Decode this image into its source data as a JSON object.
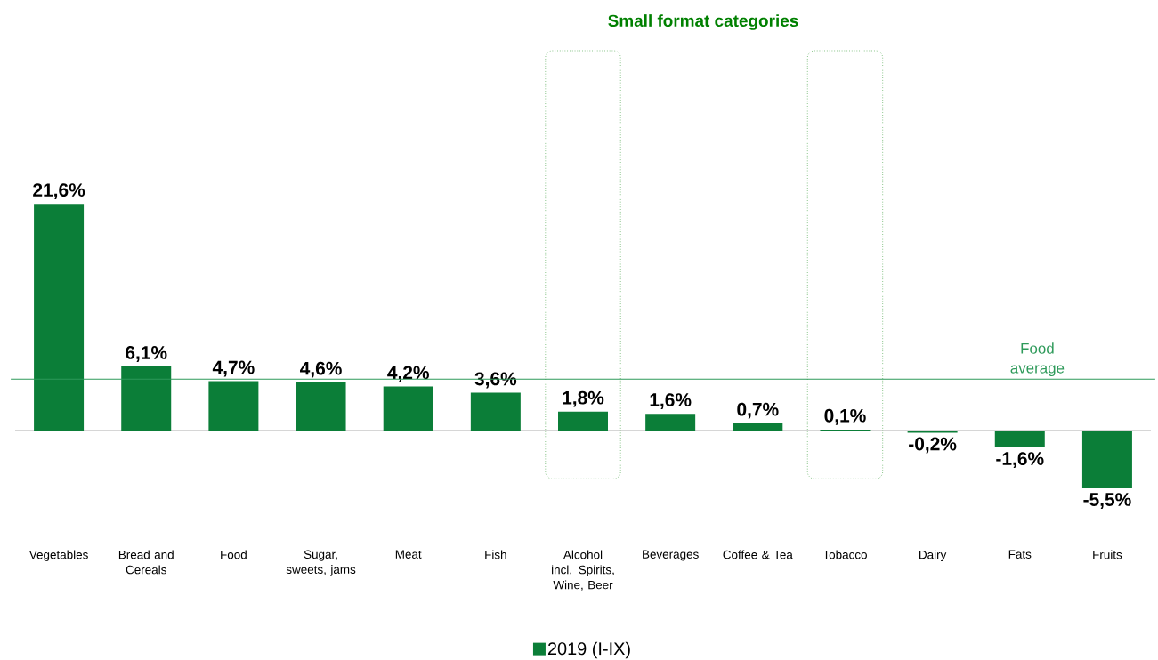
{
  "chart_data": {
    "type": "bar",
    "title": "Small format categories",
    "categories": [
      "Vegetables",
      "Bread and Cereals",
      "Food",
      "Sugar, sweets, jams",
      "Meat",
      "Fish",
      "Alcohol incl. Spirits, Wine, Beer",
      "Beverages",
      "Coffee & Tea",
      "Tobacco",
      "Dairy",
      "Fats",
      "Fruits"
    ],
    "series": [
      {
        "name": "2019 (I-IX)",
        "color": "#0b7e38",
        "values": [
          21.6,
          6.1,
          4.7,
          4.6,
          4.2,
          3.6,
          1.8,
          1.6,
          0.7,
          0.1,
          -0.2,
          -1.6,
          -5.5
        ],
        "value_labels": [
          "21,6%",
          "6,1%",
          "4,7%",
          "4,6%",
          "4,2%",
          "3,6%",
          "1,8%",
          "1,6%",
          "0,7%",
          "0,1%",
          "-0,2%",
          "-1,6%",
          "-5,5%"
        ]
      }
    ],
    "ref_lines": [
      {
        "axis": "y",
        "value": 4.9,
        "label": "Food average",
        "color": "#2e9a5a"
      }
    ],
    "legend": "bottom"
  }
}
